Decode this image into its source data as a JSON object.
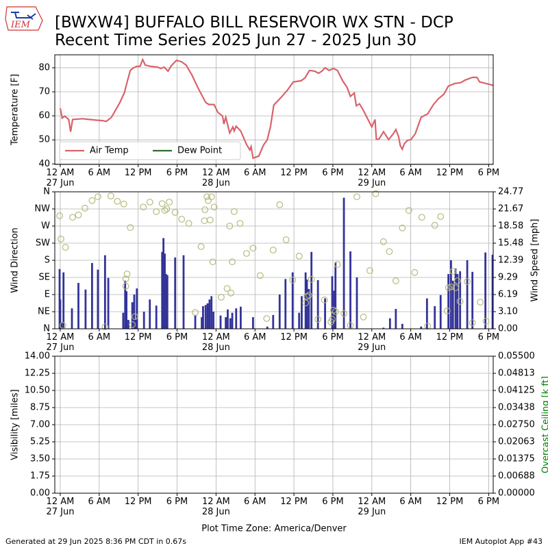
{
  "header": {
    "logo": "IEM",
    "title": "[BWXW4] BUFFALO BILL RESERVOIR WX STN - DCP",
    "subtitle": "Recent Time Series 2025 Jun 27 - 2025 Jun 30"
  },
  "footer": {
    "generated": "Generated at 29 Jun 2025 8:36 PM CDT in 0.67s",
    "app": "IEM Autoplot App #43"
  },
  "chart_data": [
    {
      "type": "line",
      "ylabel": "Temperature [F]",
      "grid": true,
      "legend": "lower left",
      "legend_columns": 2,
      "xlim": [
        -0.84,
        66.7
      ],
      "xticks": [
        {
          "value": 0,
          "label": "12 AM\n27 Jun"
        },
        {
          "value": 6,
          "label": "6 AM"
        },
        {
          "value": 12,
          "label": "12 PM"
        },
        {
          "value": 18,
          "label": "6 PM"
        },
        {
          "value": 24,
          "label": "12 AM\n28 Jun"
        },
        {
          "value": 30,
          "label": "6 AM"
        },
        {
          "value": 36,
          "label": "12 PM"
        },
        {
          "value": 42,
          "label": "6 PM"
        },
        {
          "value": 48,
          "label": "12 AM\n29 Jun"
        },
        {
          "value": 54,
          "label": "6 AM"
        },
        {
          "value": 60,
          "label": "12 PM"
        },
        {
          "value": 66,
          "label": "6 PM"
        }
      ],
      "ylim": [
        39.8,
        85.4
      ],
      "yticks": [
        40,
        50,
        60,
        70,
        80
      ],
      "series": [
        {
          "name": "Air Temp",
          "color": "#d9626a",
          "kind": "line",
          "x": [
            0.0,
            0.3,
            0.7,
            1.3,
            1.6,
            1.9,
            3.4,
            5.5,
            6.5,
            7.1,
            7.9,
            8.6,
            9.2,
            9.9,
            10.3,
            10.8,
            11.3,
            11.8,
            12.3,
            12.7,
            13.1,
            13.9,
            15.0,
            15.5,
            16.0,
            16.6,
            17.1,
            17.9,
            18.7,
            19.4,
            20.3,
            21.3,
            22.4,
            22.9,
            23.7,
            24.3,
            25.0,
            25.2,
            25.5,
            26.1,
            26.6,
            26.8,
            27.1,
            27.8,
            28.7,
            29.2,
            29.4,
            29.7,
            30.6,
            31.3,
            31.9,
            32.4,
            32.9,
            34.0,
            35.0,
            35.9,
            37.1,
            37.7,
            38.4,
            39.2,
            39.8,
            40.3,
            40.8,
            41.4,
            42.1,
            42.7,
            43.5,
            44.2,
            44.7,
            45.3,
            45.6,
            46.1,
            46.6,
            47.5,
            48.0,
            48.5,
            48.7,
            49.1,
            49.8,
            50.6,
            51.4,
            51.7,
            52.1,
            52.4,
            52.7,
            53.0,
            53.5,
            54.0,
            54.7,
            55.6,
            56.6,
            57.5,
            58.2,
            59.1,
            59.8,
            60.8,
            61.7,
            62.4,
            63.5,
            64.2,
            64.6,
            66.7
          ],
          "values": [
            63.1,
            59.1,
            59.9,
            58.5,
            53.4,
            58.5,
            58.8,
            58.2,
            58.0,
            57.7,
            59.4,
            62.8,
            65.6,
            69.8,
            74.1,
            78.9,
            80.0,
            80.6,
            80.6,
            83.4,
            81.1,
            80.6,
            80.3,
            79.7,
            80.3,
            78.6,
            80.8,
            83.1,
            82.5,
            81.1,
            76.9,
            71.2,
            65.6,
            64.7,
            64.7,
            61.4,
            59.9,
            56.6,
            59.4,
            52.9,
            55.4,
            53.7,
            55.7,
            53.7,
            48.1,
            45.8,
            47.2,
            42.4,
            43.3,
            47.8,
            50.1,
            55.7,
            64.5,
            67.6,
            70.7,
            74.1,
            74.6,
            75.8,
            78.9,
            78.6,
            77.7,
            78.6,
            80.0,
            78.9,
            79.7,
            78.9,
            74.6,
            71.8,
            68.1,
            69.5,
            64.2,
            65.0,
            62.8,
            58.0,
            55.4,
            58.5,
            50.3,
            50.3,
            53.4,
            50.1,
            52.9,
            54.3,
            51.5,
            47.5,
            46.1,
            48.4,
            49.8,
            50.1,
            52.6,
            59.4,
            60.8,
            64.7,
            67.0,
            69.0,
            72.4,
            73.5,
            73.8,
            74.9,
            76.0,
            76.0,
            74.1,
            72.7
          ]
        },
        {
          "name": "Dew Point",
          "color": "#2f6b2f",
          "kind": "line",
          "x": [],
          "values": []
        }
      ]
    },
    {
      "type": "scatter",
      "ylabel": "Wind Direction",
      "y2label": "Wind Speed [mph]",
      "grid": true,
      "xlim": [
        -0.84,
        66.7
      ],
      "xticks": [
        {
          "value": 0,
          "label": "12 AM\n27 Jun"
        },
        {
          "value": 6,
          "label": "6 AM"
        },
        {
          "value": 12,
          "label": "12 PM"
        },
        {
          "value": 18,
          "label": "6 PM"
        },
        {
          "value": 24,
          "label": "12 AM\n28 Jun"
        },
        {
          "value": 30,
          "label": "6 AM"
        },
        {
          "value": 36,
          "label": "12 PM"
        },
        {
          "value": 42,
          "label": "6 PM"
        },
        {
          "value": 48,
          "label": "12 AM\n29 Jun"
        },
        {
          "value": 54,
          "label": "6 AM"
        },
        {
          "value": 60,
          "label": "12 PM"
        },
        {
          "value": 66,
          "label": "6 PM"
        }
      ],
      "ylim": [
        0,
        360
      ],
      "yticks": [
        {
          "value": 0,
          "label": "N"
        },
        {
          "value": 45,
          "label": "NE"
        },
        {
          "value": 90,
          "label": "E"
        },
        {
          "value": 135,
          "label": "SE"
        },
        {
          "value": 180,
          "label": "S"
        },
        {
          "value": 225,
          "label": "SW"
        },
        {
          "value": 270,
          "label": "W"
        },
        {
          "value": 315,
          "label": "NW"
        },
        {
          "value": 360,
          "label": "N"
        }
      ],
      "y2lim": [
        0,
        24.77
      ],
      "y2ticks": [
        {
          "value": 0,
          "label": "0.00"
        },
        {
          "value": 3.1,
          "label": "3.10"
        },
        6.19,
        9.29,
        12.39,
        15.48,
        18.58,
        21.67,
        24.77
      ],
      "series": [
        {
          "kind": "bar",
          "axis": "y2",
          "color": "#333399",
          "x": [
            -0.1,
            0.0,
            0.2,
            0.5,
            1.8,
            2.8,
            3.9,
            4.9,
            5.8,
            6.9,
            7.4,
            9.7,
            10.0,
            10.2,
            10.5,
            11.1,
            11.4,
            11.6,
            11.8,
            12.9,
            13.8,
            14.8,
            15.7,
            15.9,
            16.1,
            16.3,
            16.5,
            17.7,
            19.0,
            20.8,
            21.8,
            22.0,
            22.4,
            22.7,
            23.0,
            23.3,
            23.6,
            24.7,
            25.5,
            25.8,
            26.2,
            26.5,
            27.1,
            27.8,
            29.7,
            31.9,
            32.8,
            33.8,
            34.7,
            35.8,
            36.8,
            37.2,
            37.8,
            38.0,
            38.3,
            38.7,
            39.7,
            40.8,
            41.9,
            42.2,
            42.4,
            43.7,
            44.7,
            45.7,
            49.8,
            50.8,
            51.7,
            52.7,
            55.6,
            56.5,
            57.7,
            58.6,
            59.8,
            60.2,
            60.5,
            60.9,
            61.2,
            61.6,
            62.7,
            63.5,
            65.5,
            66.6
          ],
          "values": [
            10.8,
            5.3,
            1.2,
            10.2,
            3.7,
            8.3,
            7.1,
            11.9,
            10.7,
            13.3,
            9.2,
            2.9,
            8.7,
            6.8,
            1.6,
            4.8,
            6.2,
            1.7,
            7.3,
            3.1,
            5.3,
            4.2,
            13.9,
            16.4,
            13.6,
            9.9,
            9.7,
            12.9,
            13.3,
            2.5,
            2.1,
            4.1,
            4.3,
            4.6,
            5.3,
            5.9,
            3.1,
            2.4,
            2.1,
            3.5,
            1.9,
            2.9,
            3.7,
            4.0,
            2.1,
            0.4,
            2.5,
            6.2,
            9.0,
            10.2,
            2.9,
            5.9,
            10.2,
            8.9,
            7.2,
            13.9,
            8.8,
            5.5,
            9.5,
            6.9,
            12.0,
            23.7,
            14.0,
            9.3,
            0.2,
            1.9,
            3.6,
            0.9,
            0.4,
            5.5,
            4.1,
            6.1,
            9.9,
            12.4,
            8.7,
            10.9,
            9.9,
            10.4,
            12.4,
            10.3,
            13.8,
            13.4
          ]
        },
        {
          "kind": "scatter",
          "color": "#b5b87a",
          "x": [
            -0.1,
            0.1,
            0.8,
            0.4,
            1.9,
            2.8,
            3.8,
            4.9,
            5.8,
            6.9,
            7.8,
            8.8,
            9.8,
            10.1,
            10.3,
            10.1,
            10.8,
            11.1,
            11.5,
            12.8,
            13.8,
            14.8,
            15.7,
            16.1,
            16.4,
            16.8,
            17.7,
            18.7,
            19.8,
            20.8,
            21.7,
            22.2,
            22.3,
            22.6,
            22.8,
            23.1,
            23.3,
            23.7,
            23.5,
            24.8,
            25.7,
            26.1,
            26.3,
            26.5,
            26.8,
            27.7,
            28.7,
            29.7,
            30.8,
            31.8,
            32.8,
            33.8,
            34.8,
            35.8,
            36.8,
            37.8,
            38.0,
            38.3,
            38.7,
            39.7,
            40.7,
            41.7,
            41.9,
            42.1,
            42.4,
            42.7,
            43.7,
            44.7,
            45.7,
            46.7,
            47.7,
            48.6,
            49.8,
            50.7,
            51.7,
            52.7,
            53.7,
            54.6,
            55.7,
            56.6,
            57.7,
            58.6,
            59.6,
            59.8,
            60.2,
            60.5,
            60.9,
            61.2,
            61.6,
            62.7,
            63.5,
            64.7,
            65.6
          ],
          "values": [
            297,
            236,
            214,
            9,
            293,
            299,
            317,
            337,
            347,
            5,
            349,
            335,
            328,
            131,
            144,
            112,
            266,
            11,
            32,
            320,
            333,
            308,
            329,
            311,
            315,
            333,
            306,
            288,
            277,
            43,
            216,
            284,
            313,
            347,
            337,
            286,
            347,
            320,
            176,
            83,
            106,
            270,
            94,
            176,
            308,
            277,
            198,
            212,
            140,
            27,
            207,
            326,
            234,
            128,
            191,
            68,
            85,
            88,
            130,
            25,
            76,
            18,
            25,
            49,
            45,
            169,
            40,
            9,
            347,
            31,
            153,
            355,
            229,
            203,
            126,
            265,
            311,
            148,
            293,
            7,
            272,
            295,
            47,
            108,
            110,
            151,
            108,
            126,
            72,
            124,
            16,
            70,
            20
          ]
        }
      ]
    },
    {
      "type": "line",
      "ylabel": "Visibility [miles]",
      "y2label": "Overcast Ceiling [k ft]",
      "y2label_color": "#008000",
      "xlabel": "Plot Time Zone: America/Denver",
      "grid": true,
      "xlim": [
        -0.84,
        66.7
      ],
      "xticks": [
        {
          "value": 0,
          "label": "12 AM\n27 Jun"
        },
        {
          "value": 6,
          "label": "6 AM"
        },
        {
          "value": 12,
          "label": "12 PM"
        },
        {
          "value": 18,
          "label": "6 PM"
        },
        {
          "value": 24,
          "label": "12 AM\n28 Jun"
        },
        {
          "value": 30,
          "label": "6 AM"
        },
        {
          "value": 36,
          "label": "12 PM"
        },
        {
          "value": 42,
          "label": "6 PM"
        },
        {
          "value": 48,
          "label": "12 AM\n29 Jun"
        },
        {
          "value": 54,
          "label": "6 AM"
        },
        {
          "value": 60,
          "label": "12 PM"
        },
        {
          "value": 66,
          "label": "6 PM"
        }
      ],
      "ylim": [
        0,
        14
      ],
      "yticks": [
        {
          "value": 0,
          "label": "0.00"
        },
        1.75,
        {
          "value": 3.5,
          "label": "3.50"
        },
        5.25,
        {
          "value": 7,
          "label": "7.00"
        },
        8.75,
        {
          "value": 10.5,
          "label": "10.50"
        },
        12.25,
        {
          "value": 14,
          "label": "14.00"
        }
      ],
      "y2lim": [
        0,
        0.055
      ],
      "y2ticks": [
        {
          "value": 0,
          "label": "0.00000"
        },
        {
          "value": 0.006875,
          "label": "0.00688"
        },
        {
          "value": 0.01375,
          "label": "0.01375"
        },
        {
          "value": 0.020625,
          "label": "0.02063"
        },
        {
          "value": 0.0275,
          "label": "0.02750"
        },
        {
          "value": 0.034375,
          "label": "0.03438"
        },
        {
          "value": 0.04125,
          "label": "0.04125"
        },
        {
          "value": 0.048125,
          "label": "0.04813"
        },
        {
          "value": 0.055,
          "label": "0.05500"
        }
      ],
      "series": []
    }
  ]
}
